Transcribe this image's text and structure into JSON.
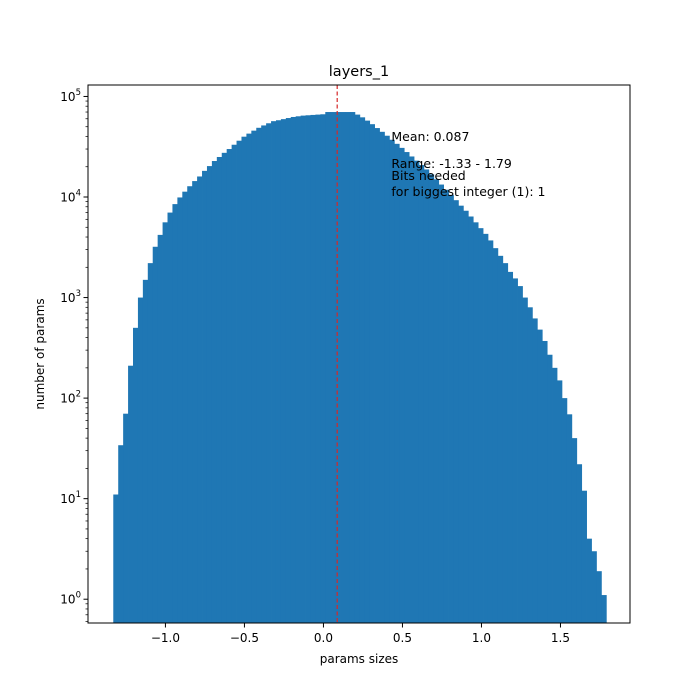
{
  "chart_data": {
    "type": "bar",
    "title": "layers_1",
    "xlabel": "params sizes",
    "ylabel": "number of params",
    "xlim": [
      -1.49,
      1.94
    ],
    "ylim": [
      0.58,
      130000
    ],
    "y_scale": "log",
    "grid": false,
    "bar_color": "#1f77b4",
    "bin_width": 0.0312,
    "x_ticks": [
      -1.0,
      -0.5,
      0.0,
      0.5,
      1.0,
      1.5
    ],
    "x_tick_labels": [
      "−1.0",
      "−0.5",
      "0.0",
      "0.5",
      "1.0",
      "1.5"
    ],
    "y_ticks": [
      1,
      10,
      100,
      1000,
      10000,
      100000
    ],
    "y_tick_labels": [
      "10",
      "10",
      "10",
      "10",
      "10",
      "10"
    ],
    "y_tick_exponents": [
      "0",
      "1",
      "2",
      "3",
      "4",
      "5"
    ],
    "bin_edges": [
      -1.33,
      -1.2988,
      -1.2676,
      -1.2364,
      -1.2052,
      -1.174,
      -1.1428,
      -1.1116,
      -1.0804,
      -1.0492,
      -1.018,
      -0.9868,
      -0.9556,
      -0.9244,
      -0.8932,
      -0.862,
      -0.8308,
      -0.7996,
      -0.7684,
      -0.7372,
      -0.706,
      -0.6748,
      -0.6436,
      -0.6124,
      -0.5812,
      -0.55,
      -0.5188,
      -0.4876,
      -0.4564,
      -0.4252,
      -0.394,
      -0.3628,
      -0.3316,
      -0.3004,
      -0.2692,
      -0.238,
      -0.2068,
      -0.1756,
      -0.1444,
      -0.1132,
      -0.082,
      -0.0508,
      -0.0196,
      0.0116,
      0.0428,
      0.074,
      0.1052,
      0.1364,
      0.1676,
      0.1988,
      0.23,
      0.2612,
      0.2924,
      0.3236,
      0.3548,
      0.386,
      0.4172,
      0.4484,
      0.4796,
      0.5108,
      0.542,
      0.5732,
      0.6044,
      0.6356,
      0.6668,
      0.698,
      0.7292,
      0.7604,
      0.7916,
      0.8228,
      0.854,
      0.8852,
      0.9164,
      0.9476,
      0.9788,
      1.01,
      1.0412,
      1.0724,
      1.1036,
      1.1348,
      1.166,
      1.1972,
      1.2284,
      1.2596,
      1.2908,
      1.322,
      1.3532,
      1.3844,
      1.4156,
      1.4468,
      1.478,
      1.5092,
      1.5404,
      1.5716,
      1.6028,
      1.634,
      1.6652,
      1.6964,
      1.7276,
      1.7588,
      1.79
    ],
    "counts": [
      11,
      34,
      70,
      210,
      500,
      1000,
      1500,
      2200,
      3200,
      4200,
      5600,
      7000,
      8500,
      9900,
      11300,
      12800,
      14400,
      16000,
      18200,
      20300,
      22800,
      25000,
      27500,
      30000,
      33100,
      36300,
      39800,
      42700,
      45700,
      48800,
      51500,
      54100,
      56800,
      58000,
      59500,
      61000,
      62500,
      63500,
      64500,
      65000,
      65500,
      66000,
      66500,
      70000,
      70000,
      70000,
      70000,
      70000,
      70000,
      66000,
      62000,
      57500,
      53000,
      48500,
      44500,
      40700,
      37100,
      33800,
      30800,
      28000,
      25300,
      23000,
      20800,
      18800,
      16800,
      15000,
      13300,
      11800,
      10500,
      9300,
      8200,
      7300,
      6400,
      5600,
      4900,
      4300,
      3700,
      3100,
      2600,
      2200,
      1800,
      1550,
      1300,
      1000,
      800,
      620,
      480,
      370,
      270,
      200,
      150,
      100,
      69,
      40,
      22,
      12,
      4,
      3,
      1.9,
      1.1
    ],
    "mean_line": {
      "value": 0.087,
      "color": "#d62728",
      "style": "dashed"
    },
    "annotations": [
      {
        "text": "Mean: 0.087",
        "x": 0.43,
        "y": 40000
      },
      {
        "text": "Range: -1.33 - 1.79",
        "x": 0.43,
        "y": 21500
      },
      {
        "text": "Bits needed",
        "x": 0.43,
        "y": 16400
      },
      {
        "text": "for biggest integer (1): 1",
        "x": 0.43,
        "y": 11400
      }
    ]
  }
}
